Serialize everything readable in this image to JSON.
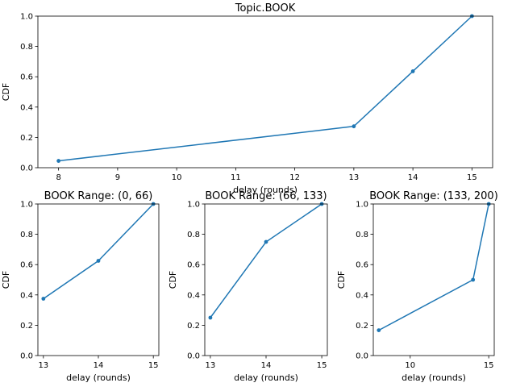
{
  "chart_data": [
    {
      "type": "line",
      "title": "Topic.BOOK",
      "xlabel": "delay (rounds)",
      "ylabel": "CDF",
      "xlim": [
        7.65,
        15.35
      ],
      "ylim": [
        0,
        1
      ],
      "xticks": [
        8,
        9,
        10,
        11,
        12,
        13,
        14,
        15
      ],
      "yticks": [
        0.0,
        0.2,
        0.4,
        0.6,
        0.8,
        1.0
      ],
      "grid": false,
      "color": "#1f77b4",
      "series": [
        {
          "x": [
            8,
            13,
            14,
            15
          ],
          "y": [
            0.045,
            0.273,
            0.636,
            1.0
          ]
        }
      ]
    },
    {
      "type": "line",
      "title": "BOOK Range: (0, 66)",
      "xlabel": "delay (rounds)",
      "ylabel": "CDF",
      "xlim": [
        12.9,
        15.1
      ],
      "ylim": [
        0,
        1
      ],
      "xticks": [
        13,
        14,
        15
      ],
      "yticks": [
        0.0,
        0.2,
        0.4,
        0.6,
        0.8,
        1.0
      ],
      "grid": false,
      "color": "#1f77b4",
      "series": [
        {
          "x": [
            13,
            14,
            15
          ],
          "y": [
            0.375,
            0.625,
            1.0
          ]
        }
      ]
    },
    {
      "type": "line",
      "title": "BOOK Range: (66, 133)",
      "xlabel": "delay (rounds)",
      "ylabel": "CDF",
      "xlim": [
        12.9,
        15.1
      ],
      "ylim": [
        0,
        1
      ],
      "xticks": [
        13,
        14,
        15
      ],
      "yticks": [
        0.0,
        0.2,
        0.4,
        0.6,
        0.8,
        1.0
      ],
      "grid": false,
      "color": "#1f77b4",
      "series": [
        {
          "x": [
            13,
            14,
            15
          ],
          "y": [
            0.25,
            0.75,
            1.0
          ]
        }
      ]
    },
    {
      "type": "line",
      "title": "BOOK Range: (133, 200)",
      "xlabel": "delay (rounds)",
      "ylabel": "CDF",
      "xlim": [
        7.65,
        15.35
      ],
      "ylim": [
        0,
        1
      ],
      "xticks": [
        10,
        15
      ],
      "yticks": [
        0.0,
        0.2,
        0.4,
        0.6,
        0.8,
        1.0
      ],
      "grid": false,
      "color": "#1f77b4",
      "series": [
        {
          "x": [
            8,
            14,
            15
          ],
          "y": [
            0.167,
            0.5,
            1.0
          ]
        }
      ]
    }
  ]
}
